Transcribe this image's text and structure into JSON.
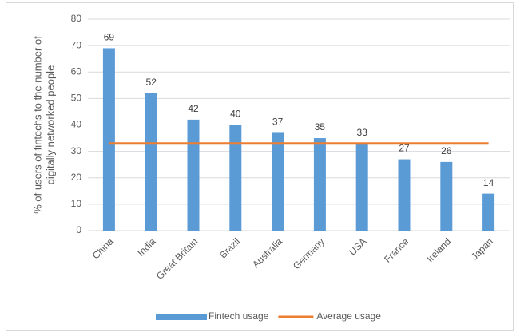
{
  "chart_data": {
    "type": "bar",
    "ylabel": [
      "% of users of fintechs to the number of",
      "digitally networked people"
    ],
    "categories": [
      "China",
      "India",
      "Great Britain",
      "Brazil",
      "Australia",
      "Germany",
      "USA",
      "France",
      "Ireland",
      "Japan"
    ],
    "series": [
      {
        "name": "Fintech usage",
        "type": "bar",
        "color": "#5b9bd5",
        "values": [
          69,
          52,
          42,
          40,
          37,
          35,
          33,
          27,
          26,
          14
        ]
      },
      {
        "name": "Average usage",
        "type": "line",
        "color": "#ed7d31",
        "values": [
          33,
          33,
          33,
          33,
          33,
          33,
          33,
          33,
          33,
          33
        ]
      }
    ],
    "ylim": [
      0,
      80
    ],
    "yticks": [
      0,
      10,
      20,
      30,
      40,
      50,
      60,
      70,
      80
    ],
    "grid": true,
    "legend": "bottom"
  }
}
